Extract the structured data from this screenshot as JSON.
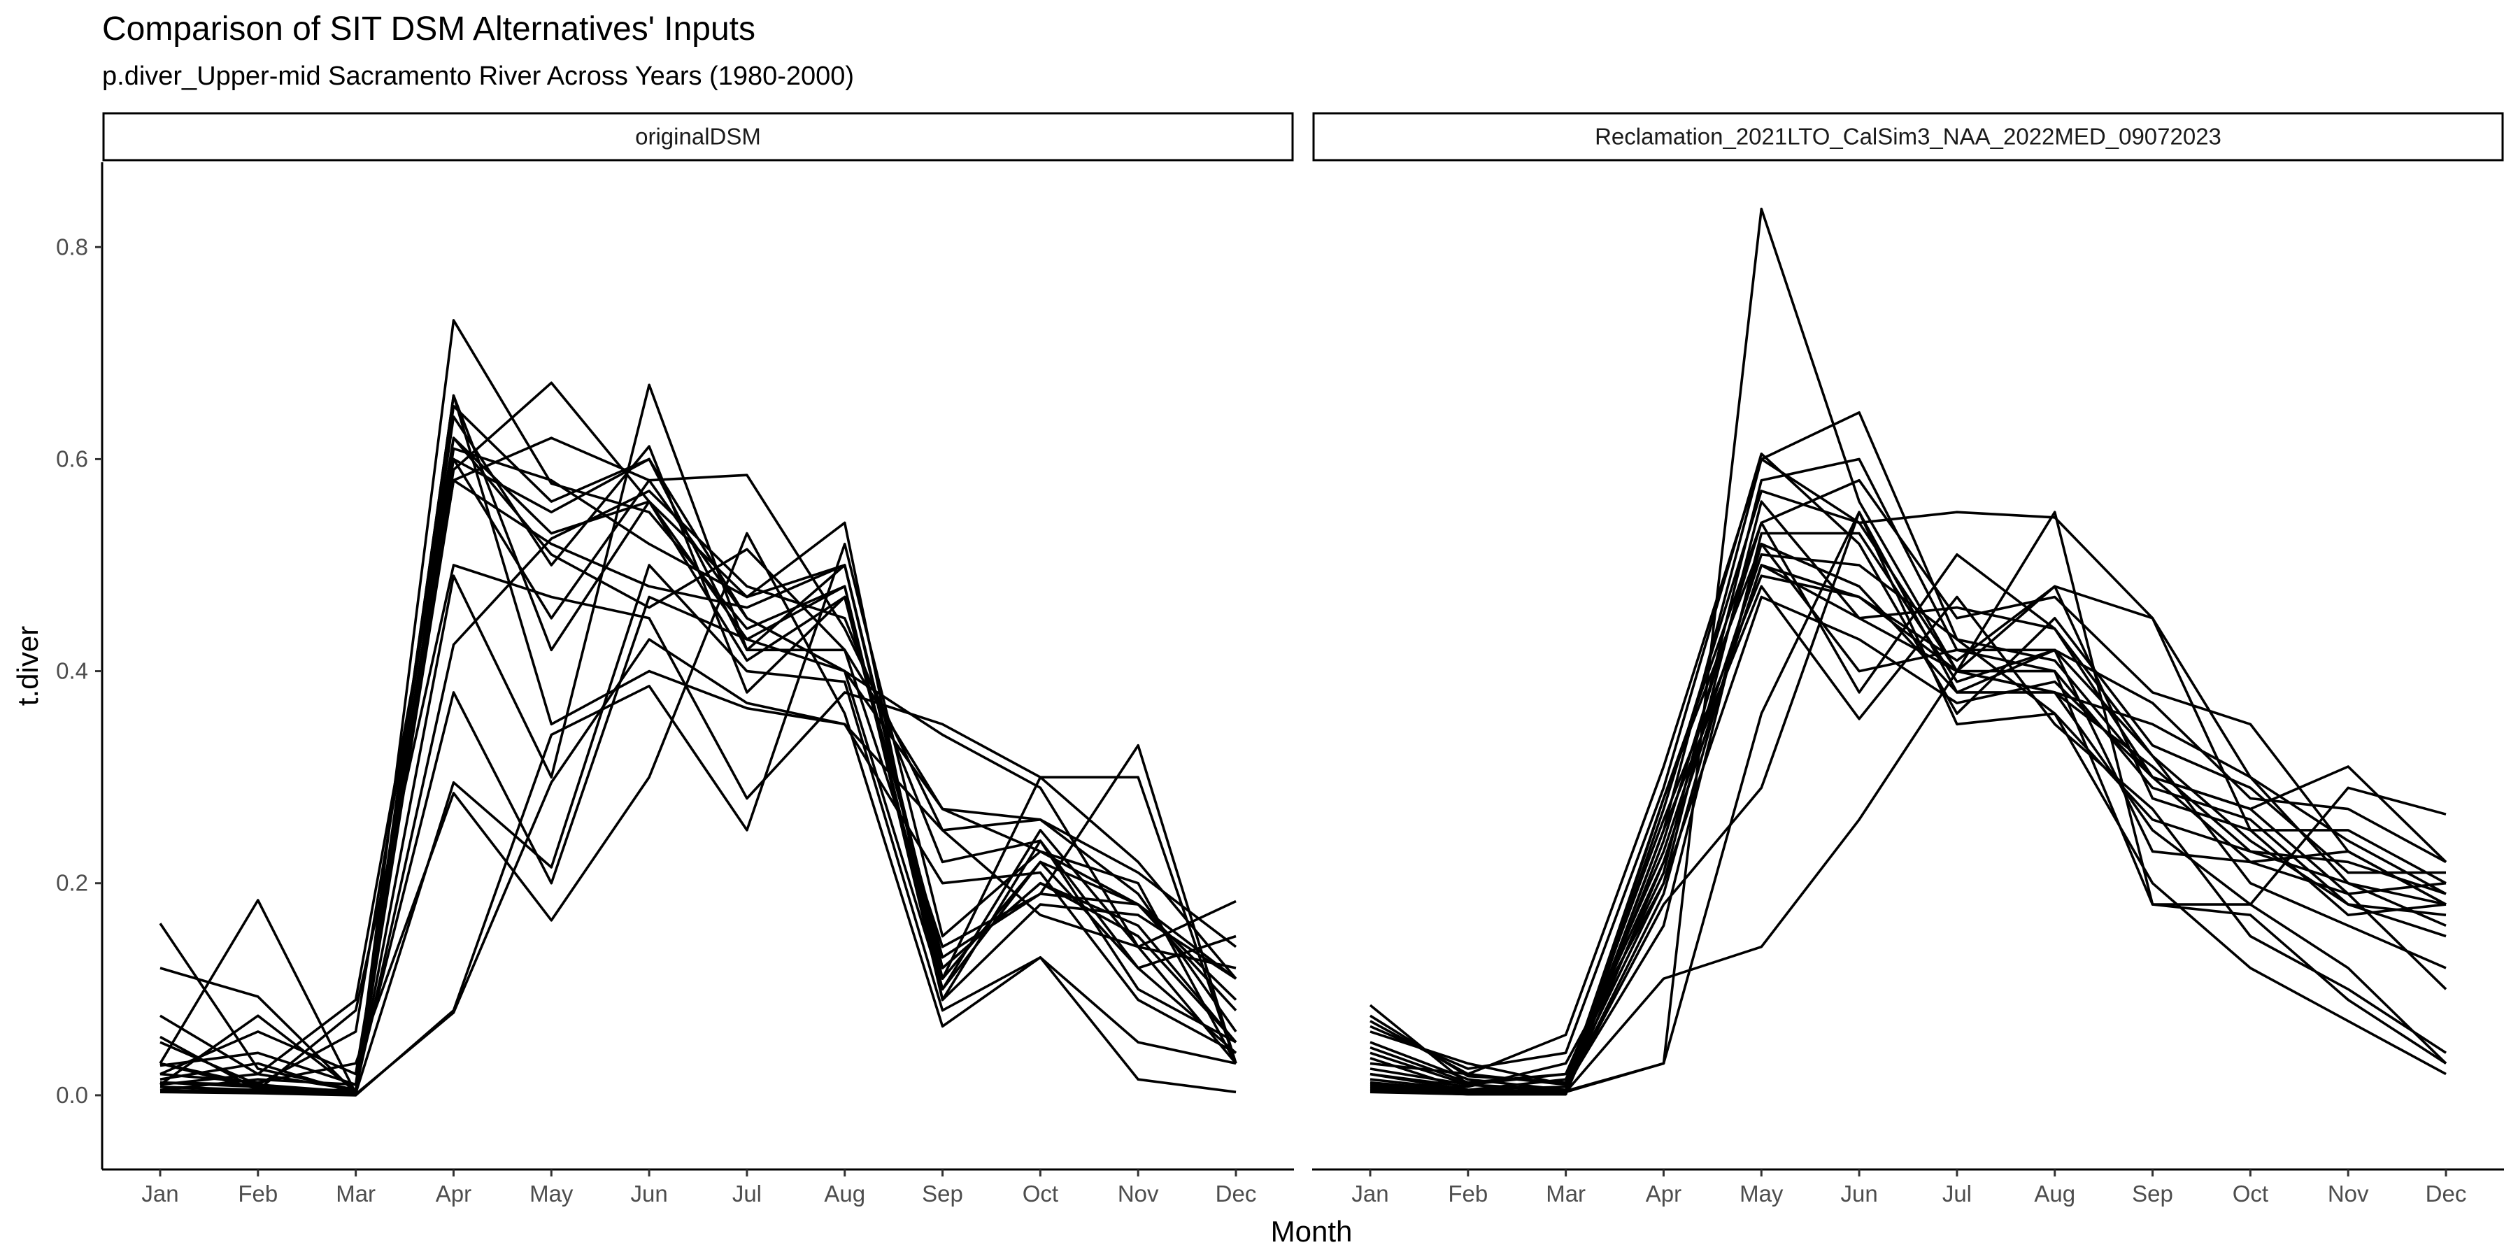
{
  "chart_data": {
    "type": "line",
    "title": "Comparison of SIT DSM Alternatives' Inputs",
    "subtitle": "p.diver_Upper-mid Sacramento River Across Years (1980-2000)",
    "xlabel": "Month",
    "ylabel": "t.diver",
    "ylim": [
      -0.07,
      0.88
    ],
    "yticks": [
      0.0,
      0.2,
      0.4,
      0.6,
      0.8
    ],
    "ytick_labels": [
      "0.0",
      "0.2",
      "0.4",
      "0.6",
      "0.8"
    ],
    "categories": [
      "Jan",
      "Feb",
      "Mar",
      "Apr",
      "May",
      "Jun",
      "Jul",
      "Aug",
      "Sep",
      "Oct",
      "Nov",
      "Dec"
    ],
    "grid": false,
    "line_color": "#000000",
    "facets": [
      {
        "name": "originalDSM",
        "series": [
          {
            "values": [
              0.162,
              0.025,
              0.005,
              0.66,
              0.42,
              0.56,
              0.47,
              0.5,
              0.12,
              0.2,
              0.15,
              0.05
            ]
          },
          {
            "values": [
              0.12,
              0.093,
              0.002,
              0.731,
              0.577,
              0.55,
              0.44,
              0.48,
              0.1,
              0.22,
              0.12,
              0.04
            ]
          },
          {
            "values": [
              0.075,
              0.02,
              0.09,
              0.6,
              0.55,
              0.6,
              0.45,
              0.4,
              0.27,
              0.23,
              0.2,
              0.03
            ]
          },
          {
            "values": [
              0.055,
              0.005,
              0.002,
              0.62,
              0.53,
              0.56,
              0.41,
              0.47,
              0.13,
              0.19,
              0.33,
              0.03
            ]
          },
          {
            "values": [
              0.03,
              0.184,
              0.002,
              0.59,
              0.672,
              0.56,
              0.43,
              0.48,
              0.09,
              0.24,
              0.1,
              0.05
            ]
          },
          {
            "values": [
              0.028,
              0.04,
              0.01,
              0.64,
              0.5,
              0.612,
              0.38,
              0.47,
              0.11,
              0.3,
              0.3,
              0.03
            ]
          },
          {
            "values": [
              0.02,
              0.06,
              0.02,
              0.58,
              0.62,
              0.58,
              0.585,
              0.44,
              0.25,
              0.26,
              0.21,
              0.14
            ]
          },
          {
            "values": [
              0.01,
              0.075,
              0.004,
              0.49,
              0.3,
              0.67,
              0.42,
              0.42,
              0.27,
              0.26,
              0.19,
              0.06
            ]
          },
          {
            "values": [
              0.012,
              0.01,
              0.06,
              0.62,
              0.51,
              0.46,
              0.515,
              0.42,
              0.14,
              0.19,
              0.18,
              0.11
            ]
          },
          {
            "values": [
              0.01,
              0.02,
              0.005,
              0.425,
              0.525,
              0.57,
              0.48,
              0.45,
              0.22,
              0.24,
              0.12,
              0.15
            ]
          },
          {
            "values": [
              0.03,
              0.01,
              0.003,
              0.66,
              0.35,
              0.4,
              0.365,
              0.35,
              0.25,
              0.17,
              0.14,
              0.12
            ]
          },
          {
            "values": [
              0.008,
              0.005,
              0.08,
              0.5,
              0.47,
              0.45,
              0.28,
              0.38,
              0.35,
              0.3,
              0.22,
              0.11
            ]
          },
          {
            "values": [
              0.005,
              0.015,
              0.01,
              0.38,
              0.2,
              0.47,
              0.43,
              0.4,
              0.34,
              0.29,
              0.14,
              0.183
            ]
          },
          {
            "values": [
              0.015,
              0.03,
              0.002,
              0.295,
              0.215,
              0.5,
              0.4,
              0.39,
              0.08,
              0.13,
              0.05,
              0.03
            ]
          },
          {
            "values": [
              0.02,
              0.012,
              0.03,
              0.285,
              0.165,
              0.3,
              0.53,
              0.36,
              0.065,
              0.13,
              0.015,
              0.003
            ]
          },
          {
            "values": [
              0.003,
              0.002,
              0.0,
              0.08,
              0.34,
              0.386,
              0.25,
              0.52,
              0.15,
              0.23,
              0.18,
              0.09
            ]
          },
          {
            "values": [
              0.005,
              0.003,
              0.001,
              0.078,
              0.295,
              0.43,
              0.37,
              0.35,
              0.2,
              0.21,
              0.09,
              0.04
            ]
          },
          {
            "values": [
              0.012,
              0.008,
              0.004,
              0.61,
              0.58,
              0.52,
              0.47,
              0.54,
              0.09,
              0.18,
              0.17,
              0.11
            ]
          },
          {
            "values": [
              0.008,
              0.004,
              0.002,
              0.65,
              0.56,
              0.6,
              0.42,
              0.5,
              0.12,
              0.2,
              0.16,
              0.05
            ]
          },
          {
            "values": [
              0.03,
              0.006,
              0.003,
              0.6,
              0.45,
              0.58,
              0.45,
              0.4,
              0.1,
              0.25,
              0.14,
              0.03
            ]
          },
          {
            "values": [
              0.05,
              0.01,
              0.002,
              0.58,
              0.52,
              0.48,
              0.46,
              0.5,
              0.11,
              0.22,
              0.18,
              0.08
            ]
          }
        ]
      },
      {
        "name": "Reclamation_2021LTO_CalSim3_NAA_2022MED_09072023",
        "series": [
          {
            "values": [
              0.085,
              0.01,
              0.003,
              0.03,
              0.836,
              0.56,
              0.4,
              0.55,
              0.18,
              0.18,
              0.29,
              0.265
            ]
          },
          {
            "values": [
              0.07,
              0.02,
              0.057,
              0.31,
              0.6,
              0.644,
              0.43,
              0.41,
              0.3,
              0.27,
              0.31,
              0.22
            ]
          },
          {
            "values": [
              0.06,
              0.03,
              0.01,
              0.28,
              0.54,
              0.58,
              0.45,
              0.47,
              0.38,
              0.35,
              0.23,
              0.18
            ]
          },
          {
            "values": [
              0.05,
              0.015,
              0.005,
              0.25,
              0.6,
              0.54,
              0.55,
              0.545,
              0.45,
              0.3,
              0.2,
              0.16
            ]
          },
          {
            "values": [
              0.04,
              0.01,
              0.02,
              0.22,
              0.5,
              0.47,
              0.4,
              0.48,
              0.45,
              0.25,
              0.25,
              0.2
            ]
          },
          {
            "values": [
              0.035,
              0.005,
              0.015,
              0.21,
              0.58,
              0.6,
              0.42,
              0.42,
              0.32,
              0.24,
              0.18,
              0.15
            ]
          },
          {
            "values": [
              0.03,
              0.02,
              0.01,
              0.2,
              0.56,
              0.45,
              0.46,
              0.44,
              0.3,
              0.22,
              0.19,
              0.1
            ]
          },
          {
            "values": [
              0.025,
              0.01,
              0.005,
              0.18,
              0.29,
              0.55,
              0.38,
              0.38,
              0.35,
              0.3,
              0.24,
              0.19
            ]
          },
          {
            "values": [
              0.02,
              0.005,
              0.008,
              0.16,
              0.53,
              0.53,
              0.39,
              0.42,
              0.37,
              0.28,
              0.27,
              0.22
            ]
          },
          {
            "values": [
              0.015,
              0.005,
              0.003,
              0.11,
              0.14,
              0.26,
              0.4,
              0.38,
              0.31,
              0.23,
              0.2,
              0.18
            ]
          },
          {
            "values": [
              0.012,
              0.004,
              0.004,
              0.03,
              0.36,
              0.55,
              0.35,
              0.36,
              0.2,
              0.12,
              0.07,
              0.02
            ]
          },
          {
            "values": [
              0.01,
              0.003,
              0.005,
              0.19,
              0.52,
              0.4,
              0.42,
              0.4,
              0.18,
              0.17,
              0.09,
              0.03
            ]
          },
          {
            "values": [
              0.008,
              0.002,
              0.002,
              0.24,
              0.54,
              0.38,
              0.51,
              0.44,
              0.32,
              0.2,
              0.16,
              0.12
            ]
          },
          {
            "values": [
              0.006,
              0.002,
              0.001,
              0.25,
              0.48,
              0.355,
              0.47,
              0.35,
              0.27,
              0.15,
              0.1,
              0.04
            ]
          },
          {
            "values": [
              0.005,
              0.001,
              0.001,
              0.27,
              0.57,
              0.54,
              0.4,
              0.38,
              0.25,
              0.18,
              0.12,
              0.03
            ]
          },
          {
            "values": [
              0.004,
              0.001,
              0.001,
              0.28,
              0.52,
              0.48,
              0.38,
              0.42,
              0.23,
              0.22,
              0.23,
              0.18
            ]
          },
          {
            "values": [
              0.003,
              0.001,
              0.001,
              0.22,
              0.5,
              0.45,
              0.4,
              0.4,
              0.29,
              0.26,
              0.18,
              0.17
            ]
          },
          {
            "values": [
              0.02,
              0.008,
              0.03,
              0.2,
              0.47,
              0.43,
              0.37,
              0.39,
              0.3,
              0.27,
              0.19,
              0.2
            ]
          },
          {
            "values": [
              0.045,
              0.012,
              0.02,
              0.23,
              0.51,
              0.5,
              0.43,
              0.36,
              0.26,
              0.23,
              0.22,
              0.19
            ]
          },
          {
            "values": [
              0.065,
              0.025,
              0.04,
              0.29,
              0.605,
              0.52,
              0.36,
              0.45,
              0.33,
              0.29,
              0.21,
              0.21
            ]
          },
          {
            "values": [
              0.075,
              0.018,
              0.012,
              0.26,
              0.49,
              0.47,
              0.41,
              0.48,
              0.28,
              0.25,
              0.17,
              0.18
            ]
          }
        ]
      }
    ]
  }
}
